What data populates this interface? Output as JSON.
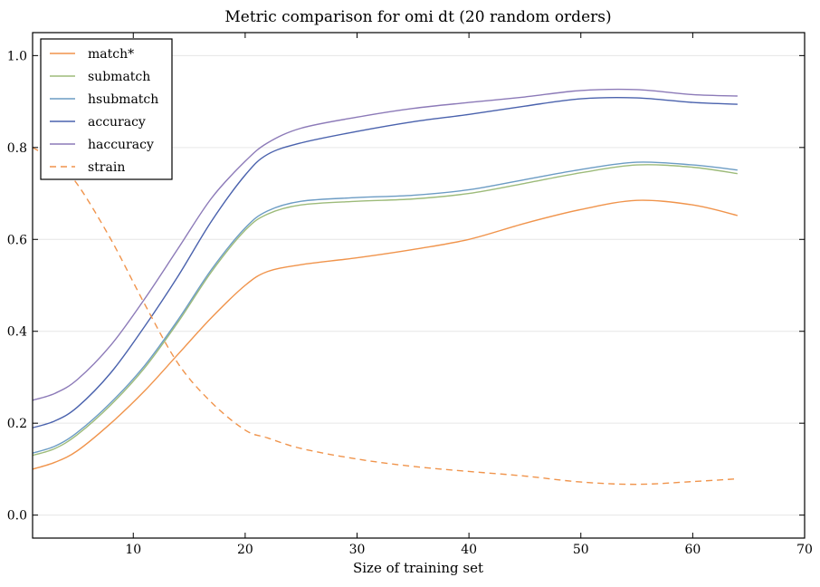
{
  "chart_data": {
    "type": "line",
    "title": "Metric comparison for omi dt (20 random orders)",
    "xlabel": "Size of training set",
    "ylabel": "",
    "xlim": [
      1,
      70
    ],
    "ylim": [
      -0.05,
      1.05
    ],
    "xticks": [
      10,
      20,
      30,
      40,
      50,
      60,
      70
    ],
    "yticks": [
      0.0,
      0.2,
      0.4,
      0.6,
      0.8,
      1.0
    ],
    "xtick_labels": [
      "10",
      "20",
      "30",
      "40",
      "50",
      "60",
      "70"
    ],
    "ytick_labels": [
      "0.0",
      "0.2",
      "0.4",
      "0.6",
      "0.8",
      "1.0"
    ],
    "grid": "horizontal",
    "legend_position": "top-left",
    "x": [
      1,
      3,
      5,
      8,
      11,
      14,
      17,
      20,
      22,
      25,
      30,
      35,
      40,
      45,
      50,
      55,
      60,
      64
    ],
    "series": [
      {
        "name": "match*",
        "color": "#f0944c",
        "dash": "solid",
        "values": [
          0.1,
          0.115,
          0.14,
          0.2,
          0.27,
          0.35,
          0.43,
          0.5,
          0.53,
          0.545,
          0.56,
          0.578,
          0.6,
          0.635,
          0.665,
          0.685,
          0.675,
          0.652
        ]
      },
      {
        "name": "submatch",
        "color": "#9dbb7a",
        "dash": "solid",
        "values": [
          0.13,
          0.145,
          0.175,
          0.24,
          0.32,
          0.42,
          0.53,
          0.62,
          0.655,
          0.675,
          0.683,
          0.688,
          0.7,
          0.722,
          0.745,
          0.762,
          0.757,
          0.743
        ]
      },
      {
        "name": "hsubmatch",
        "color": "#6c9cc4",
        "dash": "solid",
        "values": [
          0.135,
          0.15,
          0.18,
          0.245,
          0.325,
          0.425,
          0.535,
          0.625,
          0.662,
          0.683,
          0.691,
          0.696,
          0.708,
          0.73,
          0.752,
          0.768,
          0.762,
          0.751
        ]
      },
      {
        "name": "accuracy",
        "color": "#4a62ad",
        "dash": "solid",
        "values": [
          0.19,
          0.205,
          0.235,
          0.31,
          0.41,
          0.52,
          0.64,
          0.74,
          0.785,
          0.81,
          0.835,
          0.856,
          0.872,
          0.89,
          0.906,
          0.908,
          0.898,
          0.894
        ]
      },
      {
        "name": "haccuracy",
        "color": "#8c7ab8",
        "dash": "solid",
        "values": [
          0.25,
          0.265,
          0.295,
          0.37,
          0.47,
          0.58,
          0.69,
          0.77,
          0.81,
          0.842,
          0.866,
          0.885,
          0.898,
          0.91,
          0.924,
          0.926,
          0.915,
          0.912
        ]
      },
      {
        "name": "strain",
        "color": "#f0944c",
        "dash": "dashed",
        "values": [
          0.8,
          0.77,
          0.72,
          0.6,
          0.46,
          0.33,
          0.245,
          0.185,
          0.168,
          0.145,
          0.122,
          0.106,
          0.095,
          0.085,
          0.072,
          0.067,
          0.073,
          0.079
        ]
      }
    ]
  }
}
